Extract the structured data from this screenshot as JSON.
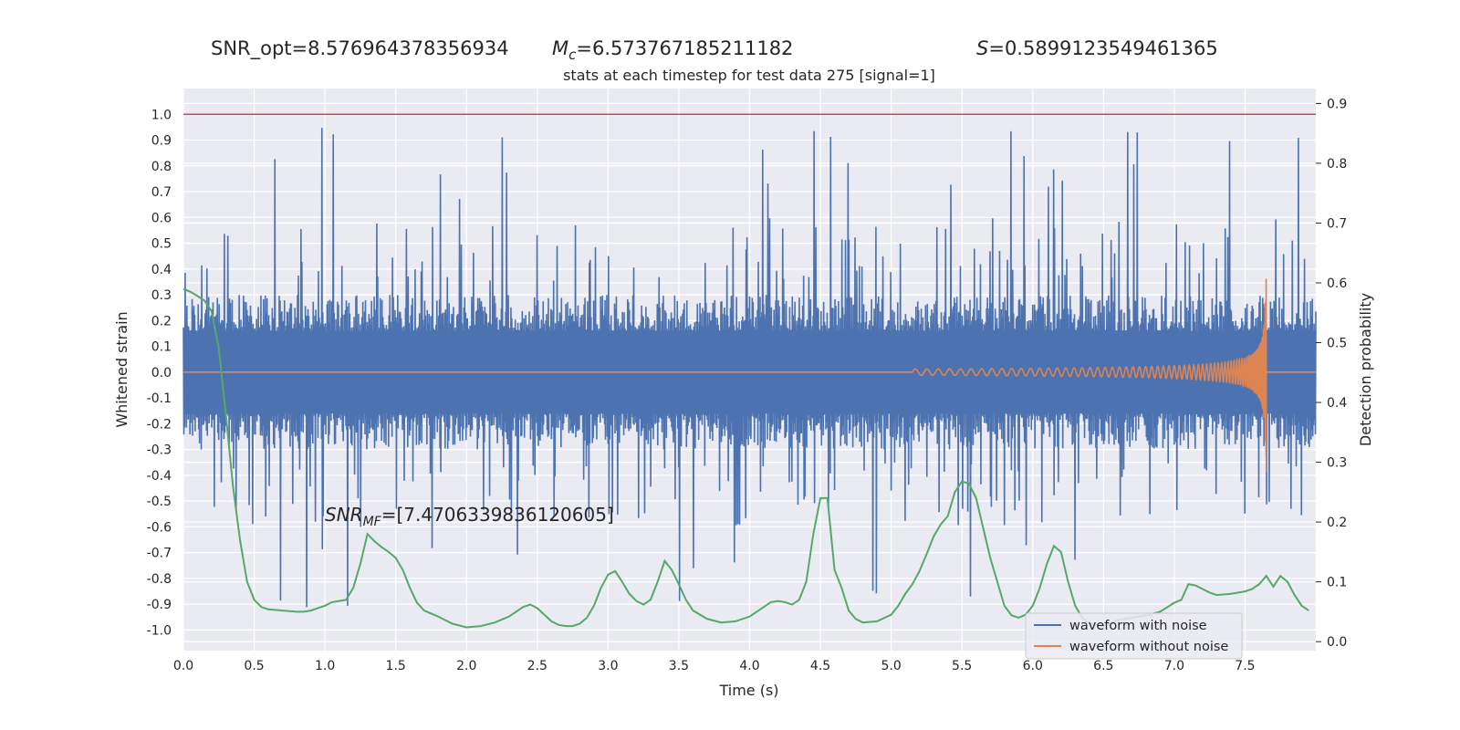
{
  "chart_data": {
    "type": "line",
    "header": {
      "snr_opt": "SNR_opt=8.576964378356934",
      "mc_symbol": "M",
      "mc_sub": "c",
      "mc_value": "=6.573767185211182",
      "s_symbol": "S",
      "s_value": "=0.5899123549461365"
    },
    "title": "stats at each timestep for test data 275 [signal=1]",
    "xlabel": "Time (s)",
    "ylabel_left": "Whitened strain",
    "ylabel_right": "Detection probability",
    "xlim": [
      0,
      8
    ],
    "ylim_left": [
      -1.08,
      1.1
    ],
    "ylim_right": [
      -0.015,
      0.925
    ],
    "xticks": [
      "0.0",
      "0.5",
      "1.0",
      "1.5",
      "2.0",
      "2.5",
      "3.0",
      "3.5",
      "4.0",
      "4.5",
      "5.0",
      "5.5",
      "6.0",
      "6.5",
      "7.0",
      "7.5"
    ],
    "yticks_left": [
      "1.0",
      "0.9",
      "0.8",
      "0.7",
      "0.6",
      "0.5",
      "0.4",
      "0.3",
      "0.2",
      "0.1",
      "0.0",
      "-0.1",
      "-0.2",
      "-0.3",
      "-0.4",
      "-0.5",
      "-0.6",
      "-0.7",
      "-0.8",
      "-0.9",
      "-1.0"
    ],
    "yticks_right": [
      "0.9",
      "0.8",
      "0.7",
      "0.6",
      "0.5",
      "0.4",
      "0.3",
      "0.2",
      "0.1",
      "0.0"
    ],
    "threshold": {
      "value": 1.0,
      "color": "#c44e52"
    },
    "annotation": {
      "prefix": "SNR",
      "sub": "MF",
      "value": "=[7.470633983612060 5]",
      "text": "=[7.4706339836120605]"
    },
    "legend": {
      "placement": "lower-right",
      "entries": [
        "waveform with noise",
        "waveform without noise"
      ]
    },
    "series": [
      {
        "name": "waveform with noise",
        "color": "#4c72b0",
        "description": "whitened noisy strain, amplitude about ±0.3 with spikes up to ±1.0 over 0–8 s"
      },
      {
        "name": "waveform without noise",
        "color": "#dd8452",
        "description": "chirp signal starting near 5.2 s, growing to ±0.48 and ending at 7.65 s"
      },
      {
        "name": "",
        "color": "#55a868",
        "axis": "right",
        "x": [
          0.0,
          0.05,
          0.1,
          0.15,
          0.2,
          0.25,
          0.3,
          0.35,
          0.4,
          0.45,
          0.5,
          0.55,
          0.6,
          0.7,
          0.8,
          0.85,
          0.9,
          0.95,
          1.0,
          1.05,
          1.1,
          1.15,
          1.2,
          1.25,
          1.3,
          1.35,
          1.4,
          1.45,
          1.5,
          1.55,
          1.6,
          1.65,
          1.7,
          1.8,
          1.9,
          2.0,
          2.1,
          2.2,
          2.3,
          2.4,
          2.45,
          2.5,
          2.55,
          2.6,
          2.65,
          2.7,
          2.75,
          2.8,
          2.85,
          2.9,
          2.95,
          3.0,
          3.05,
          3.1,
          3.15,
          3.2,
          3.25,
          3.3,
          3.35,
          3.4,
          3.45,
          3.5,
          3.55,
          3.6,
          3.7,
          3.8,
          3.9,
          4.0,
          4.05,
          4.1,
          4.15,
          4.2,
          4.25,
          4.3,
          4.35,
          4.4,
          4.45,
          4.5,
          4.55,
          4.6,
          4.65,
          4.7,
          4.75,
          4.8,
          4.9,
          5.0,
          5.05,
          5.1,
          5.15,
          5.2,
          5.25,
          5.3,
          5.35,
          5.4,
          5.45,
          5.5,
          5.55,
          5.6,
          5.65,
          5.7,
          5.75,
          5.8,
          5.85,
          5.9,
          5.95,
          6.0,
          6.05,
          6.1,
          6.15,
          6.2,
          6.25,
          6.3,
          6.35,
          6.4,
          6.5,
          6.6,
          6.7,
          6.8,
          6.9,
          7.0,
          7.05,
          7.1,
          7.15,
          7.2,
          7.25,
          7.3,
          7.4,
          7.5,
          7.55,
          7.6,
          7.65,
          7.7,
          7.75,
          7.8,
          7.85,
          7.9,
          7.95
        ],
        "y": [
          0.59,
          0.585,
          0.578,
          0.57,
          0.552,
          0.49,
          0.38,
          0.26,
          0.17,
          0.1,
          0.07,
          0.058,
          0.054,
          0.052,
          0.05,
          0.05,
          0.052,
          0.056,
          0.06,
          0.066,
          0.068,
          0.07,
          0.09,
          0.13,
          0.18,
          0.168,
          0.158,
          0.15,
          0.14,
          0.12,
          0.09,
          0.065,
          0.052,
          0.042,
          0.03,
          0.024,
          0.026,
          0.032,
          0.042,
          0.058,
          0.062,
          0.056,
          0.045,
          0.034,
          0.028,
          0.026,
          0.026,
          0.03,
          0.04,
          0.06,
          0.09,
          0.112,
          0.118,
          0.1,
          0.08,
          0.068,
          0.062,
          0.07,
          0.1,
          0.135,
          0.12,
          0.096,
          0.07,
          0.052,
          0.038,
          0.032,
          0.034,
          0.042,
          0.05,
          0.058,
          0.066,
          0.068,
          0.066,
          0.062,
          0.07,
          0.1,
          0.18,
          0.24,
          0.24,
          0.12,
          0.09,
          0.052,
          0.038,
          0.032,
          0.034,
          0.045,
          0.06,
          0.08,
          0.096,
          0.118,
          0.146,
          0.176,
          0.196,
          0.21,
          0.25,
          0.268,
          0.264,
          0.24,
          0.19,
          0.14,
          0.1,
          0.06,
          0.044,
          0.04,
          0.045,
          0.06,
          0.09,
          0.13,
          0.16,
          0.15,
          0.1,
          0.06,
          0.04,
          0.03,
          0.026,
          0.036,
          0.04,
          0.044,
          0.05,
          0.065,
          0.07,
          0.096,
          0.094,
          0.088,
          0.082,
          0.078,
          0.08,
          0.084,
          0.088,
          0.096,
          0.11,
          0.092,
          0.11,
          0.1,
          0.078,
          0.06,
          0.052
        ],
        "x_approx_note": ""
      }
    ]
  }
}
